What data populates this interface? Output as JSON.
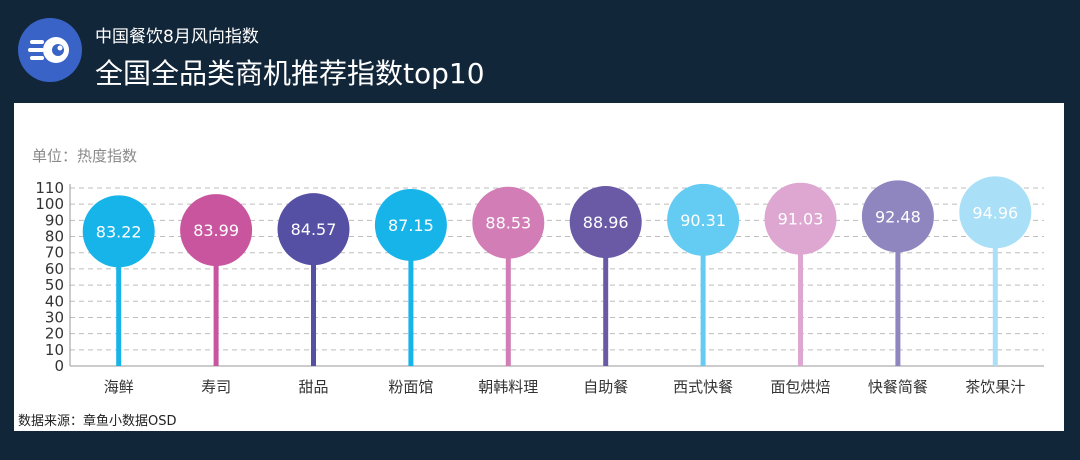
{
  "header": {
    "subtitle": "中国餐饮8月风向指数",
    "title": "全国全品类商机推荐指数top10"
  },
  "unit_label": "单位：热度指数",
  "source": "数据来源：章鱼小数据OSD",
  "chart_data": {
    "type": "bar",
    "categories": [
      "海鲜",
      "寿司",
      "甜品",
      "粉面馆",
      "朝韩料理",
      "自助餐",
      "西式快餐",
      "面包烘焙",
      "快餐简餐",
      "茶饮果汁"
    ],
    "values": [
      83.22,
      83.99,
      84.57,
      87.15,
      88.53,
      88.96,
      90.31,
      91.03,
      92.48,
      94.96
    ],
    "value_labels": [
      "83.22",
      "83.99",
      "84.57",
      "87.15",
      "88.53",
      "88.96",
      "90.31",
      "91.03",
      "92.48",
      "94.96"
    ],
    "colors": [
      "#17b4ea",
      "#c9559f",
      "#5550a3",
      "#17b4ea",
      "#d27db5",
      "#6a5aa6",
      "#64ccf2",
      "#dda7d1",
      "#8f85bf",
      "#a9dff7"
    ],
    "ylim": [
      0,
      110
    ],
    "yticks": [
      "0",
      "10",
      "20",
      "30",
      "40",
      "50",
      "60",
      "70",
      "80",
      "90",
      "100",
      "110"
    ],
    "grid": true
  }
}
